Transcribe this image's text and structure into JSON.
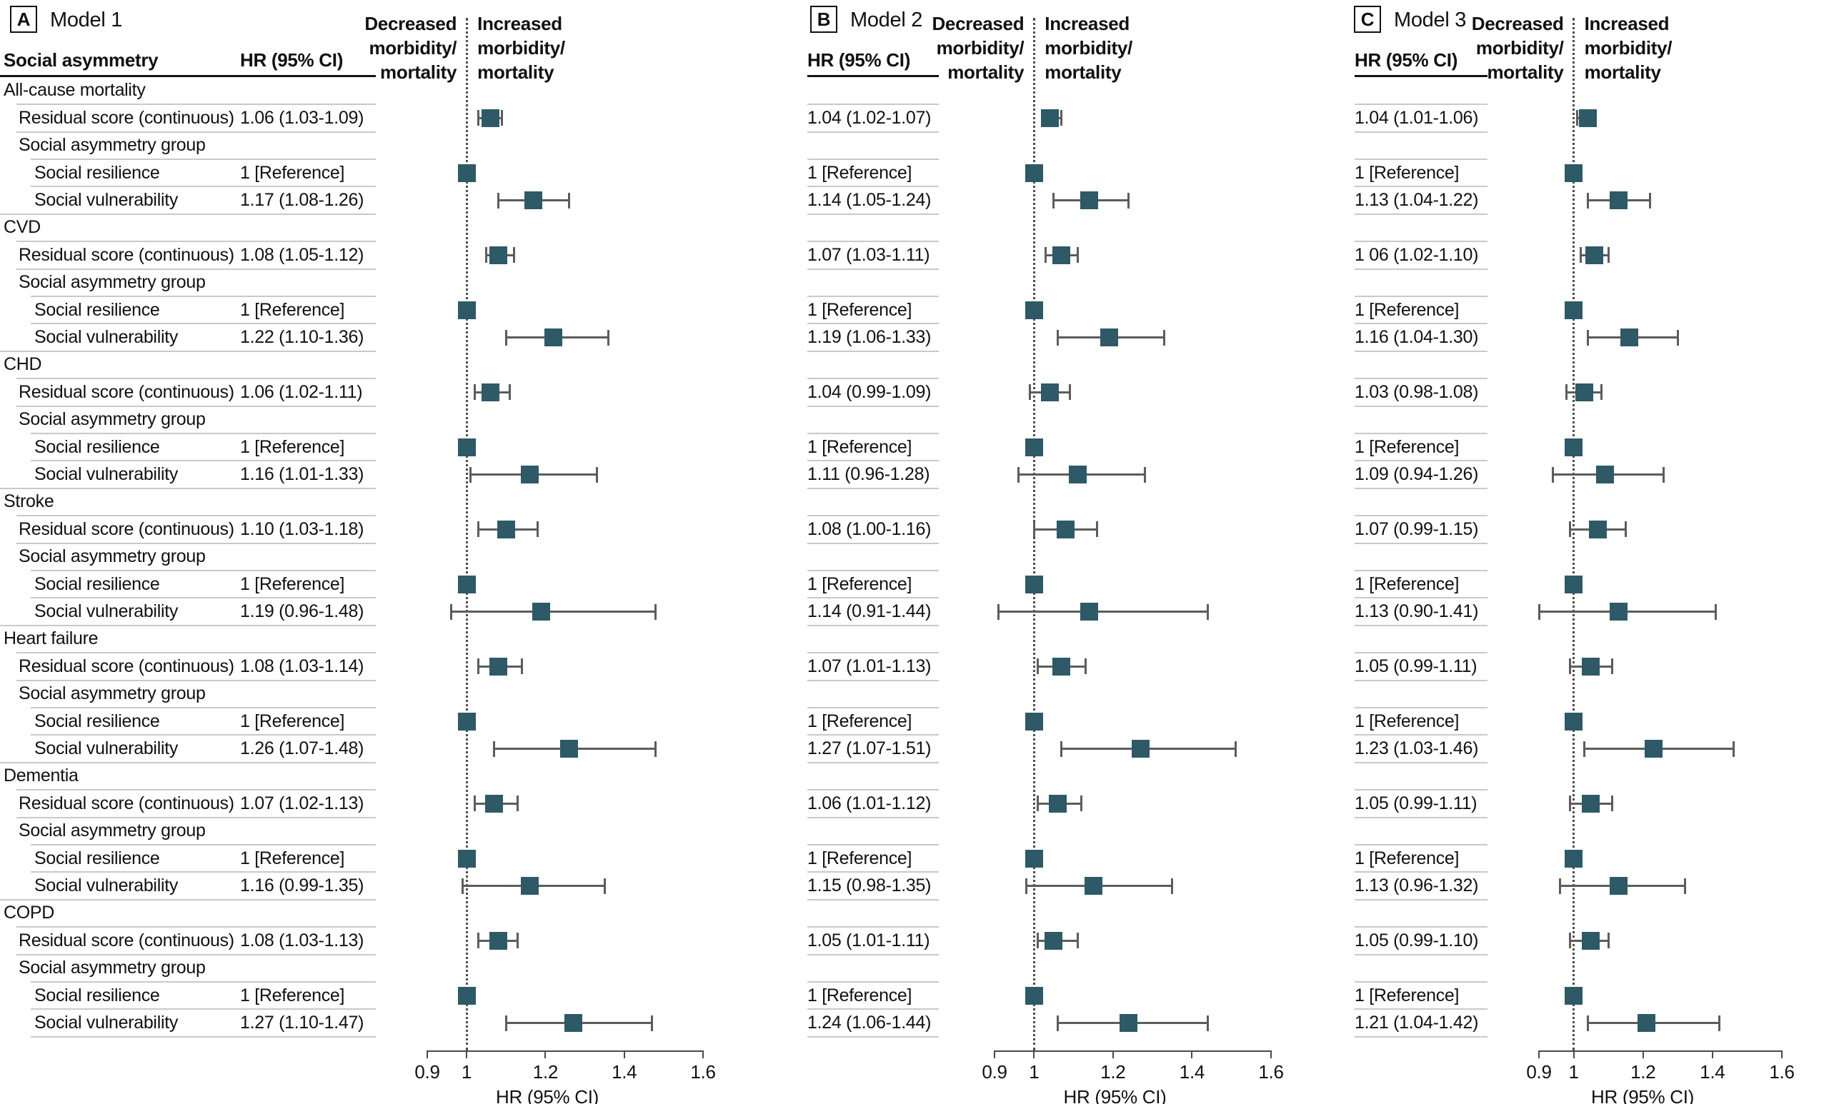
{
  "panels": [
    {
      "letter": "A",
      "model": "Model 1",
      "left_col_header": "Social asymmetry",
      "hr_col_header": "HR (95% CI)",
      "plot_header_left": [
        "Decreased",
        "morbidity/",
        "mortality"
      ],
      "plot_header_right": [
        "Increased",
        "morbidity/",
        "mortality"
      ],
      "axis_label": "HR (95% CI)",
      "axis_ticks": [
        "0.9",
        "1",
        "1.2",
        "1.4",
        "1.6"
      ]
    },
    {
      "letter": "B",
      "model": "Model 2",
      "left_col_header": "",
      "hr_col_header": "HR (95% CI)",
      "plot_header_left": [
        "Decreased",
        "morbidity/",
        "mortality"
      ],
      "plot_header_right": [
        "Increased",
        "morbidity/",
        "mortality"
      ],
      "axis_label": "HR (95% CI)",
      "axis_ticks": [
        "0.9",
        "1",
        "1.2",
        "1.4",
        "1.6"
      ]
    },
    {
      "letter": "C",
      "model": "Model 3",
      "left_col_header": "",
      "hr_col_header": "HR (95% CI)",
      "plot_header_left": [
        "Decreased",
        "morbidity/",
        "mortality"
      ],
      "plot_header_right": [
        "Increased",
        "morbidity/",
        "mortality"
      ],
      "axis_label": "HR (95% CI)",
      "axis_ticks": [
        "0.9",
        "1",
        "1.2",
        "1.4",
        "1.6"
      ]
    }
  ],
  "rows": [
    {
      "label": "All-cause mortality",
      "kind": "category"
    },
    {
      "label": "Residual score (continuous)",
      "kind": "residual"
    },
    {
      "label": "Social asymmetry group",
      "kind": "group"
    },
    {
      "label": "Social resilience",
      "kind": "resilience"
    },
    {
      "label": "Social vulnerability",
      "kind": "vulnerability"
    },
    {
      "label": "CVD",
      "kind": "category"
    },
    {
      "label": "Residual score (continuous)",
      "kind": "residual"
    },
    {
      "label": "Social asymmetry group",
      "kind": "group"
    },
    {
      "label": "Social resilience",
      "kind": "resilience"
    },
    {
      "label": "Social vulnerability",
      "kind": "vulnerability"
    },
    {
      "label": "CHD",
      "kind": "category"
    },
    {
      "label": "Residual score (continuous)",
      "kind": "residual"
    },
    {
      "label": "Social asymmetry group",
      "kind": "group"
    },
    {
      "label": "Social resilience",
      "kind": "resilience"
    },
    {
      "label": "Social vulnerability",
      "kind": "vulnerability"
    },
    {
      "label": "Stroke",
      "kind": "category"
    },
    {
      "label": "Residual score (continuous)",
      "kind": "residual"
    },
    {
      "label": "Social asymmetry group",
      "kind": "group"
    },
    {
      "label": "Social resilience",
      "kind": "resilience"
    },
    {
      "label": "Social vulnerability",
      "kind": "vulnerability"
    },
    {
      "label": "Heart failure",
      "kind": "category"
    },
    {
      "label": "Residual score (continuous)",
      "kind": "residual"
    },
    {
      "label": "Social asymmetry group",
      "kind": "group"
    },
    {
      "label": "Social resilience",
      "kind": "resilience"
    },
    {
      "label": "Social vulnerability",
      "kind": "vulnerability"
    },
    {
      "label": "Dementia",
      "kind": "category"
    },
    {
      "label": "Residual score (continuous)",
      "kind": "residual"
    },
    {
      "label": "Social asymmetry group",
      "kind": "group"
    },
    {
      "label": "Social resilience",
      "kind": "resilience"
    },
    {
      "label": "Social vulnerability",
      "kind": "vulnerability"
    },
    {
      "label": "COPD",
      "kind": "category"
    },
    {
      "label": "Residual score (continuous)",
      "kind": "residual"
    },
    {
      "label": "Social asymmetry group",
      "kind": "group"
    },
    {
      "label": "Social resilience",
      "kind": "resilience"
    },
    {
      "label": "Social vulnerability",
      "kind": "vulnerability"
    }
  ],
  "chart_data": [
    {
      "type": "scatter",
      "variant": "forest",
      "panel": "A",
      "title": "Model 1",
      "xlabel": "HR (95% CI)",
      "xlim": [
        0.9,
        1.6
      ],
      "xticks": [
        0.9,
        1,
        1.2,
        1.4,
        1.6
      ],
      "reference_line": 1,
      "points": [
        {
          "row": 1,
          "text": "1.06 (1.03-1.09)",
          "hr": 1.06,
          "lo": 1.03,
          "hi": 1.09
        },
        {
          "row": 3,
          "text": "1 [Reference]",
          "hr": 1,
          "lo": null,
          "hi": null
        },
        {
          "row": 4,
          "text": "1.17 (1.08-1.26)",
          "hr": 1.17,
          "lo": 1.08,
          "hi": 1.26
        },
        {
          "row": 6,
          "text": "1.08 (1.05-1.12)",
          "hr": 1.08,
          "lo": 1.05,
          "hi": 1.12
        },
        {
          "row": 8,
          "text": "1 [Reference]",
          "hr": 1,
          "lo": null,
          "hi": null
        },
        {
          "row": 9,
          "text": "1.22 (1.10-1.36)",
          "hr": 1.22,
          "lo": 1.1,
          "hi": 1.36
        },
        {
          "row": 11,
          "text": "1.06 (1.02-1.11)",
          "hr": 1.06,
          "lo": 1.02,
          "hi": 1.11
        },
        {
          "row": 13,
          "text": "1 [Reference]",
          "hr": 1,
          "lo": null,
          "hi": null
        },
        {
          "row": 14,
          "text": "1.16 (1.01-1.33)",
          "hr": 1.16,
          "lo": 1.01,
          "hi": 1.33
        },
        {
          "row": 16,
          "text": "1.10 (1.03-1.18)",
          "hr": 1.1,
          "lo": 1.03,
          "hi": 1.18
        },
        {
          "row": 18,
          "text": "1 [Reference]",
          "hr": 1,
          "lo": null,
          "hi": null
        },
        {
          "row": 19,
          "text": "1.19 (0.96-1.48)",
          "hr": 1.19,
          "lo": 0.96,
          "hi": 1.48
        },
        {
          "row": 21,
          "text": "1.08 (1.03-1.14)",
          "hr": 1.08,
          "lo": 1.03,
          "hi": 1.14
        },
        {
          "row": 23,
          "text": "1 [Reference]",
          "hr": 1,
          "lo": null,
          "hi": null
        },
        {
          "row": 24,
          "text": "1.26 (1.07-1.48)",
          "hr": 1.26,
          "lo": 1.07,
          "hi": 1.48
        },
        {
          "row": 26,
          "text": "1.07 (1.02-1.13)",
          "hr": 1.07,
          "lo": 1.02,
          "hi": 1.13
        },
        {
          "row": 28,
          "text": "1 [Reference]",
          "hr": 1,
          "lo": null,
          "hi": null
        },
        {
          "row": 29,
          "text": "1.16 (0.99-1.35)",
          "hr": 1.16,
          "lo": 0.99,
          "hi": 1.35
        },
        {
          "row": 31,
          "text": "1.08 (1.03-1.13)",
          "hr": 1.08,
          "lo": 1.03,
          "hi": 1.13
        },
        {
          "row": 33,
          "text": "1 [Reference]",
          "hr": 1,
          "lo": null,
          "hi": null
        },
        {
          "row": 34,
          "text": "1.27 (1.10-1.47)",
          "hr": 1.27,
          "lo": 1.1,
          "hi": 1.47
        }
      ]
    },
    {
      "type": "scatter",
      "variant": "forest",
      "panel": "B",
      "title": "Model 2",
      "xlabel": "HR (95% CI)",
      "xlim": [
        0.9,
        1.6
      ],
      "xticks": [
        0.9,
        1,
        1.2,
        1.4,
        1.6
      ],
      "reference_line": 1,
      "points": [
        {
          "row": 1,
          "text": "1.04 (1.02-1.07)",
          "hr": 1.04,
          "lo": 1.02,
          "hi": 1.07
        },
        {
          "row": 3,
          "text": "1 [Reference]",
          "hr": 1,
          "lo": null,
          "hi": null
        },
        {
          "row": 4,
          "text": "1.14 (1.05-1.24)",
          "hr": 1.14,
          "lo": 1.05,
          "hi": 1.24
        },
        {
          "row": 6,
          "text": "1.07 (1.03-1.11)",
          "hr": 1.07,
          "lo": 1.03,
          "hi": 1.11
        },
        {
          "row": 8,
          "text": "1 [Reference]",
          "hr": 1,
          "lo": null,
          "hi": null
        },
        {
          "row": 9,
          "text": "1.19 (1.06-1.33)",
          "hr": 1.19,
          "lo": 1.06,
          "hi": 1.33
        },
        {
          "row": 11,
          "text": "1.04 (0.99-1.09)",
          "hr": 1.04,
          "lo": 0.99,
          "hi": 1.09
        },
        {
          "row": 13,
          "text": "1 [Reference]",
          "hr": 1,
          "lo": null,
          "hi": null
        },
        {
          "row": 14,
          "text": "1.11 (0.96-1.28)",
          "hr": 1.11,
          "lo": 0.96,
          "hi": 1.28
        },
        {
          "row": 16,
          "text": "1.08 (1.00-1.16)",
          "hr": 1.08,
          "lo": 1.0,
          "hi": 1.16
        },
        {
          "row": 18,
          "text": "1 [Reference]",
          "hr": 1,
          "lo": null,
          "hi": null
        },
        {
          "row": 19,
          "text": "1.14 (0.91-1.44)",
          "hr": 1.14,
          "lo": 0.91,
          "hi": 1.44
        },
        {
          "row": 21,
          "text": "1.07 (1.01-1.13)",
          "hr": 1.07,
          "lo": 1.01,
          "hi": 1.13
        },
        {
          "row": 23,
          "text": "1 [Reference]",
          "hr": 1,
          "lo": null,
          "hi": null
        },
        {
          "row": 24,
          "text": "1.27 (1.07-1.51)",
          "hr": 1.27,
          "lo": 1.07,
          "hi": 1.51
        },
        {
          "row": 26,
          "text": "1.06 (1.01-1.12)",
          "hr": 1.06,
          "lo": 1.01,
          "hi": 1.12
        },
        {
          "row": 28,
          "text": "1 [Reference]",
          "hr": 1,
          "lo": null,
          "hi": null
        },
        {
          "row": 29,
          "text": "1.15 (0.98-1.35)",
          "hr": 1.15,
          "lo": 0.98,
          "hi": 1.35
        },
        {
          "row": 31,
          "text": "1.05 (1.01-1.11)",
          "hr": 1.05,
          "lo": 1.01,
          "hi": 1.11
        },
        {
          "row": 33,
          "text": "1 [Reference]",
          "hr": 1,
          "lo": null,
          "hi": null
        },
        {
          "row": 34,
          "text": "1.24 (1.06-1.44)",
          "hr": 1.24,
          "lo": 1.06,
          "hi": 1.44
        }
      ]
    },
    {
      "type": "scatter",
      "variant": "forest",
      "panel": "C",
      "title": "Model 3",
      "xlabel": "HR (95% CI)",
      "xlim": [
        0.9,
        1.6
      ],
      "xticks": [
        0.9,
        1,
        1.2,
        1.4,
        1.6
      ],
      "reference_line": 1,
      "points": [
        {
          "row": 1,
          "text": "1.04 (1.01-1.06)",
          "hr": 1.04,
          "lo": 1.01,
          "hi": 1.06
        },
        {
          "row": 3,
          "text": "1 [Reference]",
          "hr": 1,
          "lo": null,
          "hi": null
        },
        {
          "row": 4,
          "text": "1.13 (1.04-1.22)",
          "hr": 1.13,
          "lo": 1.04,
          "hi": 1.22
        },
        {
          "row": 6,
          "text": "1 06 (1.02-1.10)",
          "hr": 1.06,
          "lo": 1.02,
          "hi": 1.1
        },
        {
          "row": 8,
          "text": "1 [Reference]",
          "hr": 1,
          "lo": null,
          "hi": null
        },
        {
          "row": 9,
          "text": "1.16 (1.04-1.30)",
          "hr": 1.16,
          "lo": 1.04,
          "hi": 1.3
        },
        {
          "row": 11,
          "text": "1.03 (0.98-1.08)",
          "hr": 1.03,
          "lo": 0.98,
          "hi": 1.08
        },
        {
          "row": 13,
          "text": "1 [Reference]",
          "hr": 1,
          "lo": null,
          "hi": null
        },
        {
          "row": 14,
          "text": "1.09 (0.94-1.26)",
          "hr": 1.09,
          "lo": 0.94,
          "hi": 1.26
        },
        {
          "row": 16,
          "text": "1.07 (0.99-1.15)",
          "hr": 1.07,
          "lo": 0.99,
          "hi": 1.15
        },
        {
          "row": 18,
          "text": "1 [Reference]",
          "hr": 1,
          "lo": null,
          "hi": null
        },
        {
          "row": 19,
          "text": "1.13 (0.90-1.41)",
          "hr": 1.13,
          "lo": 0.9,
          "hi": 1.41
        },
        {
          "row": 21,
          "text": "1.05 (0.99-1.11)",
          "hr": 1.05,
          "lo": 0.99,
          "hi": 1.11
        },
        {
          "row": 23,
          "text": "1 [Reference]",
          "hr": 1,
          "lo": null,
          "hi": null
        },
        {
          "row": 24,
          "text": "1.23 (1.03-1.46)",
          "hr": 1.23,
          "lo": 1.03,
          "hi": 1.46
        },
        {
          "row": 26,
          "text": "1.05 (0.99-1.11)",
          "hr": 1.05,
          "lo": 0.99,
          "hi": 1.11
        },
        {
          "row": 28,
          "text": "1 [Reference]",
          "hr": 1,
          "lo": null,
          "hi": null
        },
        {
          "row": 29,
          "text": "1.13 (0.96-1.32)",
          "hr": 1.13,
          "lo": 0.96,
          "hi": 1.32
        },
        {
          "row": 31,
          "text": "1.05 (0.99-1.10)",
          "hr": 1.05,
          "lo": 0.99,
          "hi": 1.1
        },
        {
          "row": 33,
          "text": "1 [Reference]",
          "hr": 1,
          "lo": null,
          "hi": null
        },
        {
          "row": 34,
          "text": "1.21 (1.04-1.42)",
          "hr": 1.21,
          "lo": 1.04,
          "hi": 1.42
        }
      ]
    }
  ],
  "colors": {
    "marker": "#2e5966",
    "ci_line": "#5c5c5c",
    "row_rule": "#c9c9c9",
    "header_rule": "#141414",
    "reference_dotted": "#4d4d4d",
    "text": "#111111"
  }
}
